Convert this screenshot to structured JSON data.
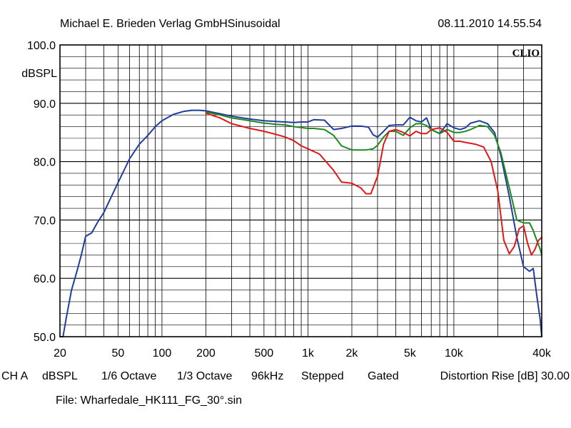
{
  "header": {
    "publisher": "Michael E. Brieden Verlag GmbH",
    "mode": "Sinusoidal",
    "timestamp": "08.11.2010 14.55.54",
    "brand": "CLIO"
  },
  "footer": {
    "channel": "CH A",
    "unit": "dBSPL",
    "smoothing": "1/6 Octave",
    "resolution": "1/3 Octave",
    "rate": "96kHz",
    "stepped": "Stepped",
    "gated": "Gated",
    "distortion": "Distortion Rise [dB] 30.00",
    "file": "File: Wharfedale_HK111_FG_30°.sin"
  },
  "chart_data": {
    "type": "line",
    "ylabel": "dBSPL",
    "xscale": "log",
    "xlim": [
      20,
      40000
    ],
    "ylim": [
      50,
      100
    ],
    "grid": true,
    "y_ticks": [
      {
        "value": 100,
        "label": "100.0"
      },
      {
        "value": 90,
        "label": "90.0"
      },
      {
        "value": 80,
        "label": "80.0"
      },
      {
        "value": 70,
        "label": "70.0"
      },
      {
        "value": 60,
        "label": "60.0"
      },
      {
        "value": 50,
        "label": "50.0"
      }
    ],
    "x_ticks": [
      {
        "value": 20,
        "label": "20"
      },
      {
        "value": 50,
        "label": "50"
      },
      {
        "value": 100,
        "label": "100"
      },
      {
        "value": 200,
        "label": "200"
      },
      {
        "value": 500,
        "label": "500"
      },
      {
        "value": 1000,
        "label": "1k"
      },
      {
        "value": 2000,
        "label": "2k"
      },
      {
        "value": 5000,
        "label": "5k"
      },
      {
        "value": 10000,
        "label": "10k"
      },
      {
        "value": 40000,
        "label": "40k"
      }
    ],
    "series": [
      {
        "color": "#1f3c9e",
        "x": [
          20,
          21,
          22,
          24,
          26,
          28,
          30,
          33,
          36,
          40,
          45,
          50,
          60,
          70,
          80,
          90,
          100,
          120,
          140,
          160,
          180,
          200,
          250,
          300,
          400,
          500,
          600,
          700,
          800,
          900,
          1000,
          1100,
          1300,
          1500,
          1700,
          2000,
          2300,
          2600,
          2800,
          3000,
          3300,
          3600,
          4000,
          4500,
          5000,
          5500,
          6000,
          6500,
          7000,
          8000,
          9000,
          10000,
          11000,
          12000,
          13000,
          15000,
          17000,
          19000,
          21000,
          24000,
          27000,
          30000,
          33000,
          35000,
          37000,
          39000,
          40000
        ],
        "y": [
          49,
          50,
          53,
          58,
          61,
          64,
          67.2,
          67.8,
          69.5,
          71.3,
          74,
          76.4,
          80.5,
          83,
          84.5,
          86,
          87,
          88.1,
          88.6,
          88.8,
          88.8,
          88.7,
          88.2,
          87.8,
          87.3,
          87,
          86.9,
          86.8,
          86.7,
          86.8,
          86.8,
          87.2,
          87.1,
          85.5,
          85.7,
          86.1,
          86.1,
          85.9,
          84.6,
          84.2,
          85.2,
          86.2,
          86.3,
          86.3,
          87.6,
          87,
          86.8,
          87.5,
          85.5,
          84.8,
          86.5,
          85.8,
          85.5,
          85.8,
          86.6,
          87,
          86.5,
          85,
          81,
          74,
          67,
          62,
          61.2,
          61.7,
          57,
          53,
          50
        ]
      },
      {
        "color": "#1e8a1e",
        "x": [
          200,
          250,
          300,
          400,
          500,
          600,
          700,
          800,
          1000,
          1100,
          1300,
          1500,
          1700,
          2000,
          2500,
          2800,
          3000,
          3300,
          3600,
          4000,
          4500,
          5000,
          5500,
          6000,
          6500,
          7000,
          8000,
          9000,
          10000,
          11000,
          12000,
          13000,
          15000,
          17000,
          19000,
          21000,
          24000,
          27000,
          30000,
          33000,
          35000,
          37000,
          39000,
          40000
        ],
        "y": [
          88.5,
          88,
          87.5,
          87,
          86.6,
          86.4,
          86.3,
          86,
          85.7,
          85.7,
          85.5,
          84.5,
          82.7,
          82,
          82,
          82.2,
          82.8,
          84.2,
          85.2,
          85.2,
          84.5,
          85.8,
          86.5,
          86.5,
          86.2,
          85.5,
          84.8,
          85.5,
          85,
          85,
          85.2,
          85.5,
          86.2,
          86,
          84.5,
          81.5,
          75.5,
          70,
          69.5,
          69.5,
          68.2,
          66.5,
          65,
          64
        ]
      },
      {
        "color": "#e01818",
        "x": [
          200,
          250,
          300,
          400,
          500,
          600,
          700,
          800,
          900,
          1000,
          1200,
          1500,
          1700,
          2000,
          2300,
          2500,
          2700,
          3000,
          3300,
          3600,
          4000,
          4500,
          5000,
          5500,
          6000,
          6500,
          7000,
          8000,
          9000,
          10000,
          11000,
          12000,
          14000,
          16000,
          18000,
          20000,
          22000,
          24000,
          26000,
          28000,
          30000,
          32000,
          34000,
          36000,
          38000,
          40000
        ],
        "y": [
          88.3,
          87.5,
          86.5,
          85.7,
          85.2,
          84.7,
          84.2,
          83.6,
          82.7,
          82.2,
          81.3,
          78.5,
          76.5,
          76.3,
          75.5,
          74.5,
          74.5,
          77.5,
          83,
          85.2,
          85.5,
          85,
          84.4,
          85.2,
          84.8,
          84.8,
          85.5,
          85.8,
          85,
          83.5,
          83.5,
          83.3,
          83,
          82.5,
          80,
          75,
          66.5,
          64.2,
          65.5,
          68.5,
          69,
          66,
          64,
          65,
          66.5,
          67
        ]
      }
    ]
  }
}
